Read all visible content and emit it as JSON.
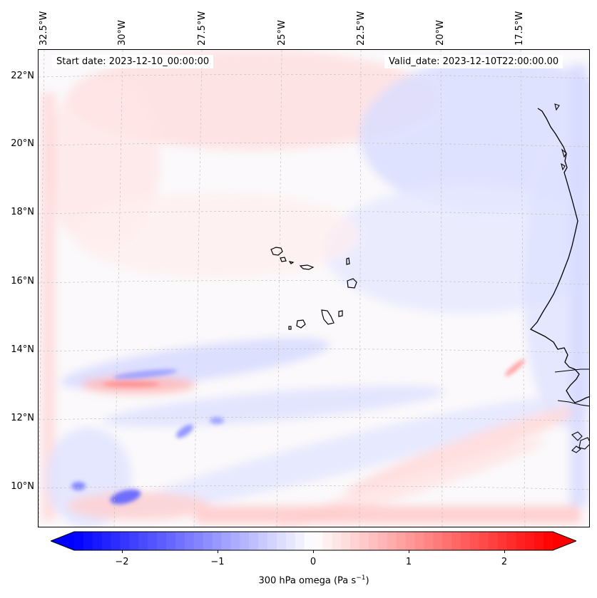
{
  "map": {
    "title_start": "Start date: 2023-12-10_00:00:00",
    "title_valid": "Valid_date: 2023-12-10T22:00:00.00",
    "projection": "lambert-conformal",
    "lon_labels": [
      "32.5°W",
      "30°W",
      "27.5°W",
      "25°W",
      "22.5°W",
      "20°W",
      "17.5°W"
    ],
    "lat_labels": [
      "22°N",
      "20°N",
      "18°N",
      "16°N",
      "14°N",
      "12°N",
      "10°N"
    ],
    "field": "300 hPa omega",
    "features": [
      "West African coastline",
      "Cape Verde islands"
    ]
  },
  "colorbar": {
    "label_main": "300 hPa omega (Pa s",
    "label_sup": "−1",
    "label_end": ")",
    "ticks": [
      "−2",
      "−1",
      "0",
      "1",
      "2"
    ],
    "tick_values": [
      -2,
      -1,
      0,
      1,
      2
    ],
    "vmin": -2.6,
    "vmax": 2.6,
    "cmap": "bwr",
    "extend": "both"
  },
  "colors": {
    "negative": "#0000ff",
    "neutral": "#ffffff",
    "positive": "#ff0000",
    "coastline": "#000000",
    "grid": "#bbbbbb"
  }
}
